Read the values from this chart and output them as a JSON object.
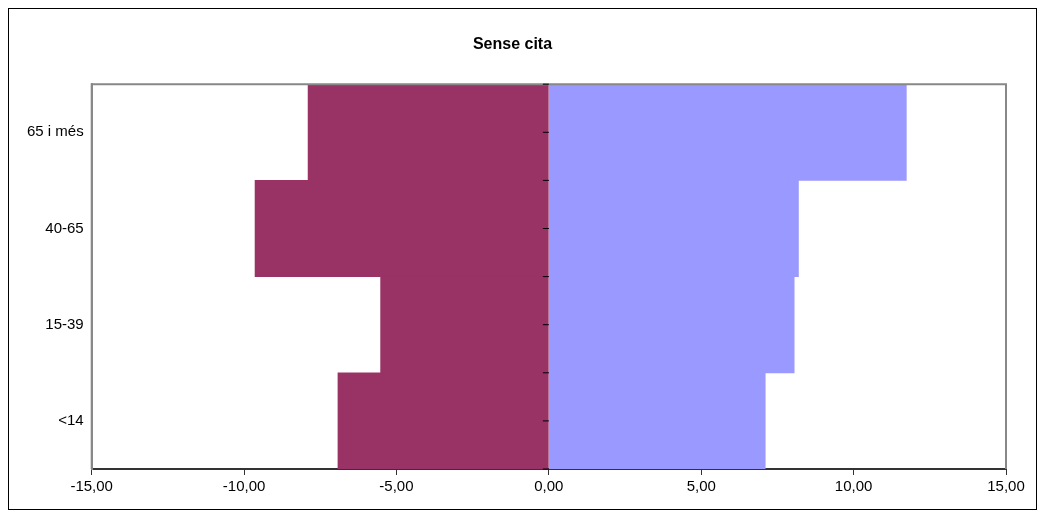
{
  "chart_data": {
    "type": "bar",
    "title": "Sense cita",
    "orientation": "horizontal",
    "stacked": true,
    "categories": [
      "65 i més",
      "40-65",
      "15-39",
      "<14"
    ],
    "series": [
      {
        "color": "#993366",
        "values": [
          -7.9,
          -9.64,
          -5.52,
          -6.92
        ]
      },
      {
        "color": "#9999ff",
        "values": [
          11.73,
          8.19,
          8.05,
          7.1
        ]
      }
    ],
    "xlim": [
      -15,
      15
    ],
    "xticks": [
      {
        "value": -15,
        "label": "-15,00"
      },
      {
        "value": -10,
        "label": "-10,00"
      },
      {
        "value": -5,
        "label": "-5,00"
      },
      {
        "value": 0,
        "label": "0,00"
      },
      {
        "value": 5,
        "label": "5,00"
      },
      {
        "value": 10,
        "label": "10,00"
      },
      {
        "value": 15,
        "label": "15,00"
      }
    ],
    "grid": false,
    "legend": false
  }
}
